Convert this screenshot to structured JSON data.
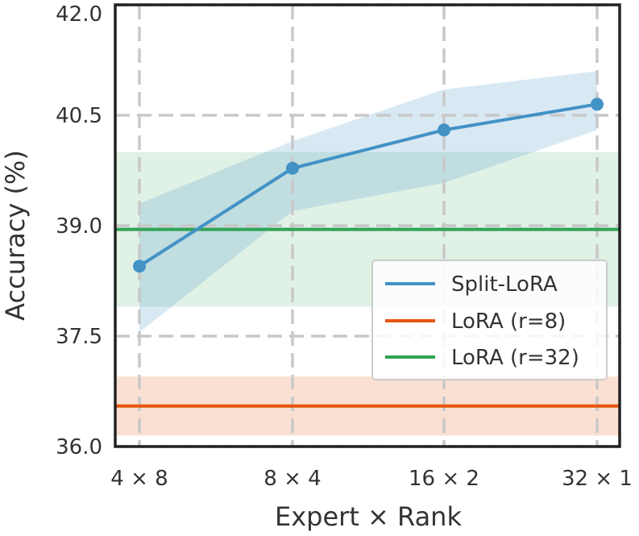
{
  "chart_data": {
    "type": "line",
    "title": "",
    "xlabel": "Expert × Rank",
    "ylabel": "Accuracy (%)",
    "categories": [
      "4 × 8",
      "8 × 4",
      "16 × 2",
      "32 × 1"
    ],
    "ylim": [
      36.0,
      42.0
    ],
    "yticks": [
      "36.0",
      "37.5",
      "39.0",
      "40.5",
      "42.0"
    ],
    "grid": true,
    "legend_position": "center-right",
    "series": [
      {
        "name": "Split-LoRA",
        "color": "#4292c6",
        "values": [
          38.45,
          39.78,
          40.3,
          40.65
        ],
        "band_lower": [
          37.55,
          39.2,
          39.58,
          40.3
        ],
        "band_upper": [
          39.3,
          40.15,
          40.85,
          41.1
        ]
      },
      {
        "name": "LoRA (r=8)",
        "color": "#e6550d",
        "value": 36.55,
        "band": [
          36.15,
          36.95
        ]
      },
      {
        "name": "LoRA (r=32)",
        "color": "#31a354",
        "value": 38.95,
        "band": [
          37.9,
          40.0
        ]
      }
    ]
  }
}
